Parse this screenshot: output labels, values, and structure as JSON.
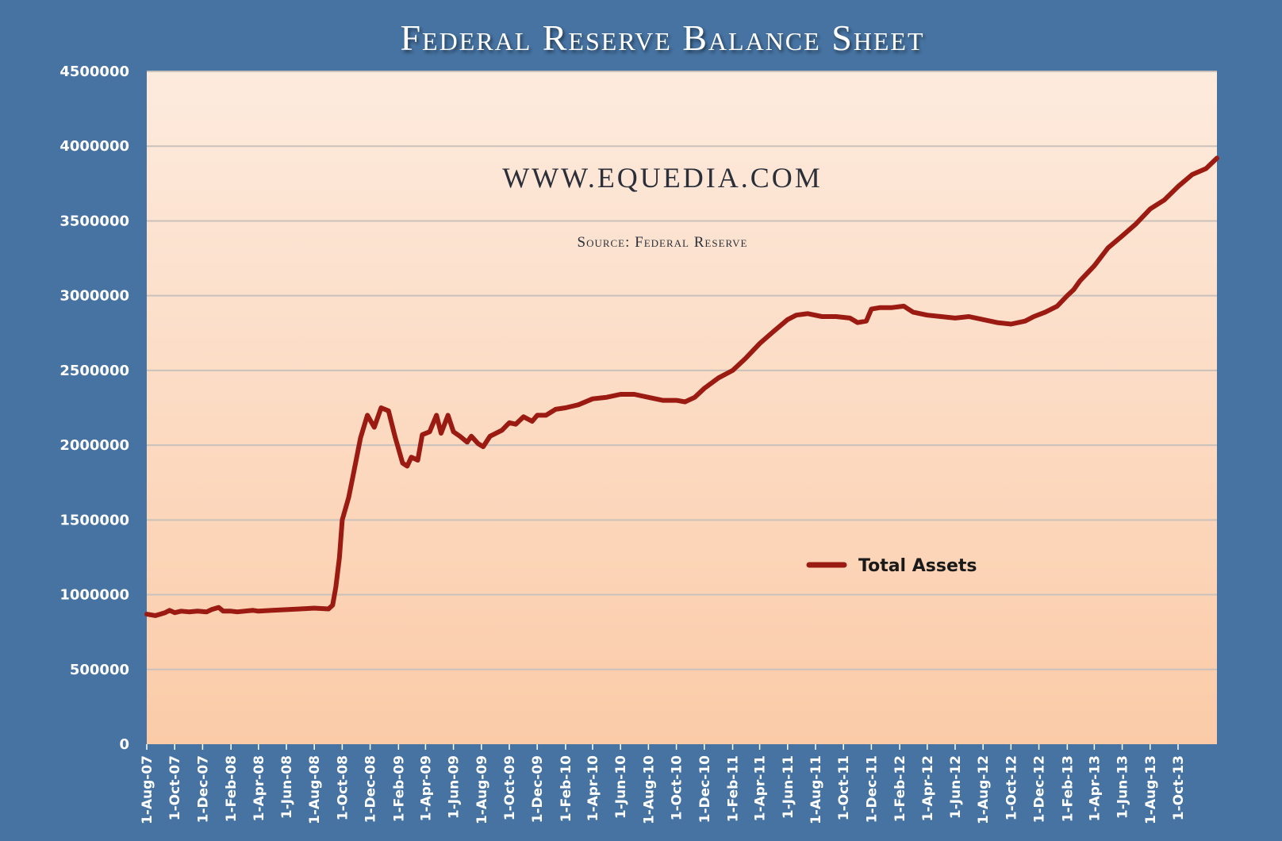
{
  "chart_data": {
    "type": "line",
    "title": "Federal Reserve Balance Sheet",
    "annotations": [
      "WWW.EQUEDIA.COM",
      "Source: Federal Reserve"
    ],
    "ylim": [
      0,
      4500000
    ],
    "y_ticks": [
      "0",
      "500000",
      "1000000",
      "1500000",
      "2000000",
      "2500000",
      "3000000",
      "3500000",
      "4000000",
      "4500000"
    ],
    "x_tick_labels": [
      "1-Aug-07",
      "1-Oct-07",
      "1-Dec-07",
      "1-Feb-08",
      "1-Apr-08",
      "1-Jun-08",
      "1-Aug-08",
      "1-Oct-08",
      "1-Dec-08",
      "1-Feb-09",
      "1-Apr-09",
      "1-Jun-09",
      "1-Aug-09",
      "1-Oct-09",
      "1-Dec-09",
      "1-Feb-10",
      "1-Apr-10",
      "1-Jun-10",
      "1-Aug-10",
      "1-Oct-10",
      "1-Dec-10",
      "1-Feb-11",
      "1-Apr-11",
      "1-Jun-11",
      "1-Aug-11",
      "1-Oct-11",
      "1-Dec-11",
      "1-Feb-12",
      "1-Apr-12",
      "1-Jun-12",
      "1-Aug-12",
      "1-Oct-12",
      "1-Dec-12",
      "1-Feb-13",
      "1-Apr-13",
      "1-Jun-13",
      "1-Aug-13",
      "1-Oct-13"
    ],
    "xlim": [
      "2007-08-01",
      "2013-12-25"
    ],
    "grid": true,
    "legend_position": "center-right",
    "colors": {
      "line": "#9b1a12",
      "background": "#4673a2",
      "plot_top": "#fdebde",
      "plot_bottom": "#fbcba8",
      "grid": "#c9c1bb"
    },
    "series": [
      {
        "name": "Total Assets",
        "points": [
          [
            "2007-08-01",
            870000
          ],
          [
            "2007-08-20",
            860000
          ],
          [
            "2007-09-10",
            880000
          ],
          [
            "2007-09-20",
            895000
          ],
          [
            "2007-10-01",
            880000
          ],
          [
            "2007-10-15",
            890000
          ],
          [
            "2007-11-01",
            885000
          ],
          [
            "2007-11-20",
            890000
          ],
          [
            "2007-12-10",
            885000
          ],
          [
            "2007-12-20",
            900000
          ],
          [
            "2008-01-05",
            915000
          ],
          [
            "2008-01-15",
            890000
          ],
          [
            "2008-02-01",
            890000
          ],
          [
            "2008-02-15",
            885000
          ],
          [
            "2008-03-01",
            890000
          ],
          [
            "2008-03-20",
            895000
          ],
          [
            "2008-04-01",
            890000
          ],
          [
            "2008-05-01",
            895000
          ],
          [
            "2008-06-01",
            900000
          ],
          [
            "2008-07-01",
            905000
          ],
          [
            "2008-08-01",
            910000
          ],
          [
            "2008-09-01",
            905000
          ],
          [
            "2008-09-10",
            930000
          ],
          [
            "2008-09-17",
            1050000
          ],
          [
            "2008-09-25",
            1250000
          ],
          [
            "2008-10-01",
            1500000
          ],
          [
            "2008-10-15",
            1650000
          ],
          [
            "2008-10-25",
            1800000
          ],
          [
            "2008-11-10",
            2050000
          ],
          [
            "2008-11-25",
            2200000
          ],
          [
            "2008-12-10",
            2120000
          ],
          [
            "2008-12-25",
            2250000
          ],
          [
            "2009-01-10",
            2230000
          ],
          [
            "2009-01-25",
            2050000
          ],
          [
            "2009-02-10",
            1880000
          ],
          [
            "2009-02-20",
            1860000
          ],
          [
            "2009-03-01",
            1920000
          ],
          [
            "2009-03-15",
            1900000
          ],
          [
            "2009-03-25",
            2070000
          ],
          [
            "2009-04-10",
            2090000
          ],
          [
            "2009-04-25",
            2200000
          ],
          [
            "2009-05-05",
            2080000
          ],
          [
            "2009-05-20",
            2200000
          ],
          [
            "2009-06-01",
            2090000
          ],
          [
            "2009-06-15",
            2060000
          ],
          [
            "2009-07-01",
            2020000
          ],
          [
            "2009-07-10",
            2060000
          ],
          [
            "2009-07-25",
            2010000
          ],
          [
            "2009-08-05",
            1990000
          ],
          [
            "2009-08-20",
            2060000
          ],
          [
            "2009-09-15",
            2100000
          ],
          [
            "2009-10-01",
            2150000
          ],
          [
            "2009-10-15",
            2140000
          ],
          [
            "2009-11-01",
            2190000
          ],
          [
            "2009-11-20",
            2160000
          ],
          [
            "2009-12-01",
            2200000
          ],
          [
            "2009-12-20",
            2200000
          ],
          [
            "2010-01-10",
            2240000
          ],
          [
            "2010-02-01",
            2250000
          ],
          [
            "2010-03-01",
            2270000
          ],
          [
            "2010-04-01",
            2310000
          ],
          [
            "2010-05-01",
            2320000
          ],
          [
            "2010-06-01",
            2340000
          ],
          [
            "2010-07-01",
            2340000
          ],
          [
            "2010-08-01",
            2320000
          ],
          [
            "2010-09-01",
            2300000
          ],
          [
            "2010-10-01",
            2300000
          ],
          [
            "2010-10-20",
            2290000
          ],
          [
            "2010-11-10",
            2320000
          ],
          [
            "2010-12-01",
            2380000
          ],
          [
            "2011-01-01",
            2450000
          ],
          [
            "2011-02-01",
            2500000
          ],
          [
            "2011-03-01",
            2580000
          ],
          [
            "2011-04-01",
            2680000
          ],
          [
            "2011-05-01",
            2760000
          ],
          [
            "2011-06-01",
            2840000
          ],
          [
            "2011-06-20",
            2870000
          ],
          [
            "2011-07-15",
            2880000
          ],
          [
            "2011-08-15",
            2860000
          ],
          [
            "2011-09-15",
            2860000
          ],
          [
            "2011-10-15",
            2850000
          ],
          [
            "2011-11-01",
            2820000
          ],
          [
            "2011-11-20",
            2830000
          ],
          [
            "2011-12-01",
            2910000
          ],
          [
            "2011-12-20",
            2920000
          ],
          [
            "2012-01-15",
            2920000
          ],
          [
            "2012-02-10",
            2930000
          ],
          [
            "2012-03-01",
            2890000
          ],
          [
            "2012-04-01",
            2870000
          ],
          [
            "2012-05-01",
            2860000
          ],
          [
            "2012-06-01",
            2850000
          ],
          [
            "2012-07-01",
            2860000
          ],
          [
            "2012-08-01",
            2840000
          ],
          [
            "2012-09-01",
            2820000
          ],
          [
            "2012-10-01",
            2810000
          ],
          [
            "2012-11-01",
            2830000
          ],
          [
            "2012-11-20",
            2860000
          ],
          [
            "2012-12-15",
            2890000
          ],
          [
            "2013-01-10",
            2930000
          ],
          [
            "2013-02-01",
            3000000
          ],
          [
            "2013-02-15",
            3040000
          ],
          [
            "2013-03-01",
            3100000
          ],
          [
            "2013-04-01",
            3200000
          ],
          [
            "2013-05-01",
            3320000
          ],
          [
            "2013-06-01",
            3400000
          ],
          [
            "2013-07-01",
            3480000
          ],
          [
            "2013-08-01",
            3580000
          ],
          [
            "2013-09-01",
            3640000
          ],
          [
            "2013-10-01",
            3730000
          ],
          [
            "2013-11-01",
            3810000
          ],
          [
            "2013-12-01",
            3850000
          ],
          [
            "2013-12-25",
            3920000
          ]
        ]
      }
    ]
  }
}
